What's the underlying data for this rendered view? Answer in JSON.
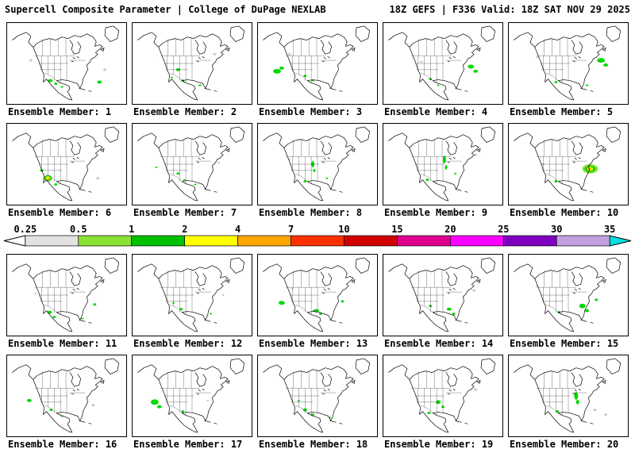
{
  "header": {
    "left": "Supercell Composite Parameter | College of DuPage NEXLAB",
    "right": "18Z GEFS | F336 Valid: 18Z SAT NOV 29 2025"
  },
  "colorbar": {
    "ticks": [
      "0.25",
      "0.5",
      "1",
      "2",
      "4",
      "7",
      "10",
      "15",
      "20",
      "25",
      "30",
      "35"
    ],
    "segment_colors": [
      "#e2e2e2",
      "#8ae234",
      "#00c000",
      "#ffff00",
      "#ffa500",
      "#ff3000",
      "#d00000",
      "#e00090",
      "#ff00ff",
      "#8000c0",
      "#c0a0e0"
    ],
    "left_arrow_color": "#ffffff",
    "right_arrow_color": "#00e0e0"
  },
  "blob_colors": {
    "g": "#00d800",
    "lg": "#8ae234",
    "y": "#ffe800",
    "o": "#ff9500",
    "gy": "#c8c8c8"
  },
  "panels": [
    {
      "label": "Ensemble Member: 1",
      "blobs": [
        [
          55,
          74,
          3,
          2,
          "g"
        ],
        [
          62,
          78,
          2,
          1.5,
          "g"
        ],
        [
          118,
          76,
          3,
          2,
          "g"
        ],
        [
          30,
          48,
          2,
          1.5,
          "gy"
        ],
        [
          70,
          82,
          2,
          1,
          "g"
        ],
        [
          125,
          60,
          2,
          1.5,
          "gy"
        ]
      ]
    },
    {
      "label": "Ensemble Member: 2",
      "blobs": [
        [
          58,
          60,
          2.5,
          2,
          "g"
        ],
        [
          64,
          74,
          2,
          1.5,
          "g"
        ],
        [
          50,
          70,
          1.5,
          1,
          "g"
        ],
        [
          105,
          40,
          2,
          1.5,
          "gy"
        ],
        [
          86,
          80,
          2,
          1,
          "g"
        ]
      ]
    },
    {
      "label": "Ensemble Member: 3",
      "blobs": [
        [
          24,
          62,
          5,
          3,
          "g"
        ],
        [
          30,
          58,
          3,
          2,
          "g"
        ],
        [
          60,
          68,
          2,
          1.5,
          "g"
        ],
        [
          70,
          74,
          2,
          1,
          "g"
        ],
        [
          40,
          40,
          2,
          1.5,
          "gy"
        ]
      ]
    },
    {
      "label": "Ensemble Member: 4",
      "blobs": [
        [
          60,
          72,
          2,
          1.5,
          "g"
        ],
        [
          112,
          56,
          4,
          2.5,
          "g"
        ],
        [
          118,
          62,
          3,
          2,
          "g"
        ],
        [
          70,
          80,
          1.5,
          1,
          "g"
        ],
        [
          48,
          50,
          2,
          1,
          "gy"
        ]
      ]
    },
    {
      "label": "Ensemble Member: 5",
      "blobs": [
        [
          118,
          48,
          5,
          3,
          "g"
        ],
        [
          124,
          54,
          3,
          2,
          "g"
        ],
        [
          60,
          76,
          2,
          1.5,
          "g"
        ],
        [
          100,
          80,
          2,
          1,
          "g"
        ],
        [
          36,
          44,
          2,
          1,
          "gy"
        ]
      ]
    },
    {
      "label": "Ensemble Member: 6",
      "blobs": [
        [
          52,
          70,
          5,
          4,
          "g"
        ],
        [
          52,
          70,
          3,
          2.5,
          "y"
        ],
        [
          53,
          71,
          1.5,
          1.2,
          "o"
        ],
        [
          62,
          78,
          2,
          1.5,
          "g"
        ],
        [
          44,
          60,
          2,
          1.5,
          "g"
        ],
        [
          116,
          70,
          2,
          1.5,
          "gy"
        ]
      ]
    },
    {
      "label": "Ensemble Member: 7",
      "blobs": [
        [
          58,
          64,
          2,
          1.5,
          "g"
        ],
        [
          66,
          72,
          1.5,
          1,
          "g"
        ],
        [
          80,
          78,
          1.5,
          1,
          "g"
        ],
        [
          110,
          50,
          2,
          1,
          "gy"
        ],
        [
          30,
          56,
          1.5,
          1,
          "g"
        ]
      ]
    },
    {
      "label": "Ensemble Member: 8",
      "blobs": [
        [
          70,
          52,
          2,
          4,
          "g"
        ],
        [
          72,
          60,
          1.5,
          2,
          "g"
        ],
        [
          60,
          74,
          2,
          1.5,
          "g"
        ],
        [
          88,
          70,
          1.5,
          1,
          "g"
        ],
        [
          40,
          46,
          1.5,
          1,
          "gy"
        ]
      ]
    },
    {
      "label": "Ensemble Member: 9",
      "blobs": [
        [
          78,
          46,
          2,
          5,
          "g"
        ],
        [
          80,
          56,
          1.5,
          3,
          "g"
        ],
        [
          56,
          72,
          2,
          1.5,
          "g"
        ],
        [
          92,
          64,
          1.5,
          1,
          "g"
        ],
        [
          118,
          40,
          2,
          1.5,
          "gy"
        ]
      ]
    },
    {
      "label": "Ensemble Member: 10",
      "blobs": [
        [
          104,
          58,
          10,
          6,
          "lg"
        ],
        [
          104,
          58,
          7,
          4,
          "g"
        ],
        [
          104,
          58,
          4,
          2.5,
          "y"
        ],
        [
          103,
          58,
          2,
          1.2,
          "o"
        ],
        [
          60,
          74,
          2,
          1.5,
          "g"
        ],
        [
          44,
          52,
          2,
          1,
          "gy"
        ]
      ]
    },
    {
      "label": "Ensemble Member: 11",
      "blobs": [
        [
          54,
          74,
          3,
          2,
          "g"
        ],
        [
          60,
          80,
          2,
          1.5,
          "g"
        ],
        [
          96,
          82,
          2,
          1,
          "g"
        ],
        [
          112,
          64,
          2,
          1.5,
          "g"
        ],
        [
          36,
          50,
          1.5,
          1,
          "gy"
        ]
      ]
    },
    {
      "label": "Ensemble Member: 12",
      "blobs": [
        [
          62,
          70,
          2,
          1.5,
          "g"
        ],
        [
          52,
          62,
          1.5,
          1,
          "g"
        ],
        [
          100,
          76,
          1.5,
          1,
          "g"
        ],
        [
          116,
          52,
          1.5,
          1,
          "gy"
        ]
      ]
    },
    {
      "label": "Ensemble Member: 13",
      "blobs": [
        [
          30,
          62,
          4,
          2.5,
          "g"
        ],
        [
          74,
          72,
          4,
          2,
          "g"
        ],
        [
          80,
          76,
          2,
          1.5,
          "g"
        ],
        [
          108,
          60,
          2,
          1.5,
          "g"
        ],
        [
          44,
          44,
          1.5,
          1,
          "gy"
        ]
      ]
    },
    {
      "label": "Ensemble Member: 14",
      "blobs": [
        [
          84,
          70,
          3,
          2,
          "g"
        ],
        [
          90,
          76,
          2,
          1.5,
          "g"
        ],
        [
          60,
          66,
          2,
          1.5,
          "g"
        ],
        [
          116,
          46,
          2,
          1.5,
          "gy"
        ]
      ]
    },
    {
      "label": "Ensemble Member: 15",
      "blobs": [
        [
          94,
          66,
          4,
          3,
          "g"
        ],
        [
          100,
          72,
          2.5,
          2,
          "g"
        ],
        [
          64,
          74,
          2,
          1.5,
          "g"
        ],
        [
          112,
          58,
          2,
          1.5,
          "g"
        ],
        [
          36,
          40,
          1.5,
          1,
          "gy"
        ]
      ]
    },
    {
      "label": "Ensemble Member: 16",
      "blobs": [
        [
          28,
          58,
          3,
          2,
          "g"
        ],
        [
          56,
          70,
          2,
          1.5,
          "g"
        ],
        [
          70,
          78,
          1.5,
          1,
          "g"
        ],
        [
          110,
          64,
          2,
          1.5,
          "gy"
        ]
      ]
    },
    {
      "label": "Ensemble Member: 17",
      "blobs": [
        [
          28,
          60,
          5,
          3.5,
          "g"
        ],
        [
          34,
          66,
          3,
          2,
          "g"
        ],
        [
          64,
          72,
          2,
          1.5,
          "g"
        ],
        [
          96,
          58,
          1.5,
          1,
          "gy"
        ]
      ]
    },
    {
      "label": "Ensemble Member: 18",
      "blobs": [
        [
          60,
          70,
          2.5,
          2,
          "g"
        ],
        [
          70,
          76,
          2,
          1.5,
          "g"
        ],
        [
          52,
          58,
          1.5,
          1,
          "g"
        ],
        [
          92,
          80,
          1.5,
          1,
          "g"
        ]
      ]
    },
    {
      "label": "Ensemble Member: 19",
      "blobs": [
        [
          70,
          60,
          3,
          2.5,
          "g"
        ],
        [
          76,
          66,
          2,
          1.5,
          "g"
        ],
        [
          58,
          74,
          2,
          1.5,
          "g"
        ],
        [
          118,
          44,
          2,
          1.5,
          "gy"
        ]
      ]
    },
    {
      "label": "Ensemble Member: 20",
      "blobs": [
        [
          86,
          52,
          2.5,
          5,
          "g"
        ],
        [
          88,
          60,
          2,
          3,
          "g"
        ],
        [
          62,
          72,
          2,
          1.5,
          "g"
        ],
        [
          110,
          70,
          2,
          1.5,
          "gy"
        ],
        [
          124,
          76,
          2,
          1.5,
          "gy"
        ]
      ]
    }
  ]
}
